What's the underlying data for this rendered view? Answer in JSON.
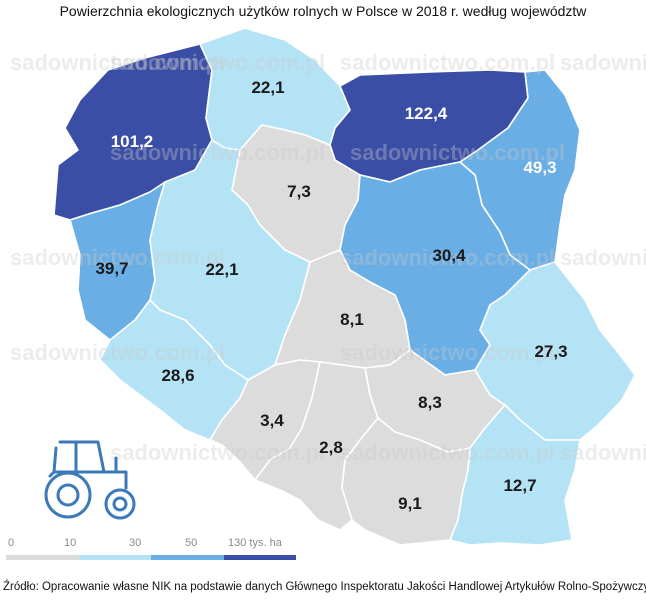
{
  "title": "Powierzchnia ekologicznych użytków rolnych w Polsce w 2018 r. według województw",
  "watermark": "sadownictwo.com.pl",
  "colors": {
    "class_0_10": "#dcdcdc",
    "class_10_30": "#b5e3f6",
    "class_30_50": "#6aaee6",
    "class_50_130": "#3a4ea6"
  },
  "regions": [
    {
      "id": "zachodniopomorskie",
      "value": "101,2",
      "class": "class_50_130"
    },
    {
      "id": "pomorskie",
      "value": "22,1",
      "class": "class_10_30"
    },
    {
      "id": "warminsko-mazurskie",
      "value": "122,4",
      "class": "class_50_130"
    },
    {
      "id": "podlaskie",
      "value": "49,3",
      "class": "class_30_50"
    },
    {
      "id": "kujawsko-pomorskie",
      "value": "7,3",
      "class": "class_0_10"
    },
    {
      "id": "lubuskie",
      "value": "39,7",
      "class": "class_30_50"
    },
    {
      "id": "wielkopolskie",
      "value": "22,1",
      "class": "class_10_30"
    },
    {
      "id": "mazowieckie",
      "value": "30,4",
      "class": "class_30_50"
    },
    {
      "id": "lodzkie",
      "value": "8,1",
      "class": "class_0_10"
    },
    {
      "id": "lubelskie",
      "value": "27,3",
      "class": "class_10_30"
    },
    {
      "id": "dolnoslaskie",
      "value": "28,6",
      "class": "class_10_30"
    },
    {
      "id": "opolskie",
      "value": "3,4",
      "class": "class_0_10"
    },
    {
      "id": "swietokrzyskie",
      "value": "8,3",
      "class": "class_0_10"
    },
    {
      "id": "slaskie",
      "value": "2,8",
      "class": "class_0_10"
    },
    {
      "id": "malopolskie",
      "value": "9,1",
      "class": "class_0_10"
    },
    {
      "id": "podkarpackie",
      "value": "12,7",
      "class": "class_10_30"
    }
  ],
  "legend": {
    "ticks": [
      "0",
      "10",
      "30",
      "50",
      "130 tys. ha"
    ],
    "classes": [
      "class_0_10",
      "class_10_30",
      "class_30_50",
      "class_50_130"
    ]
  },
  "source": "Źródło: Opracowanie własne NIK na podstawie danych Głównego Inspektoratu Jakości Handlowej Artykułów Rolno-Spożywczych.",
  "icon": "tractor-icon"
}
